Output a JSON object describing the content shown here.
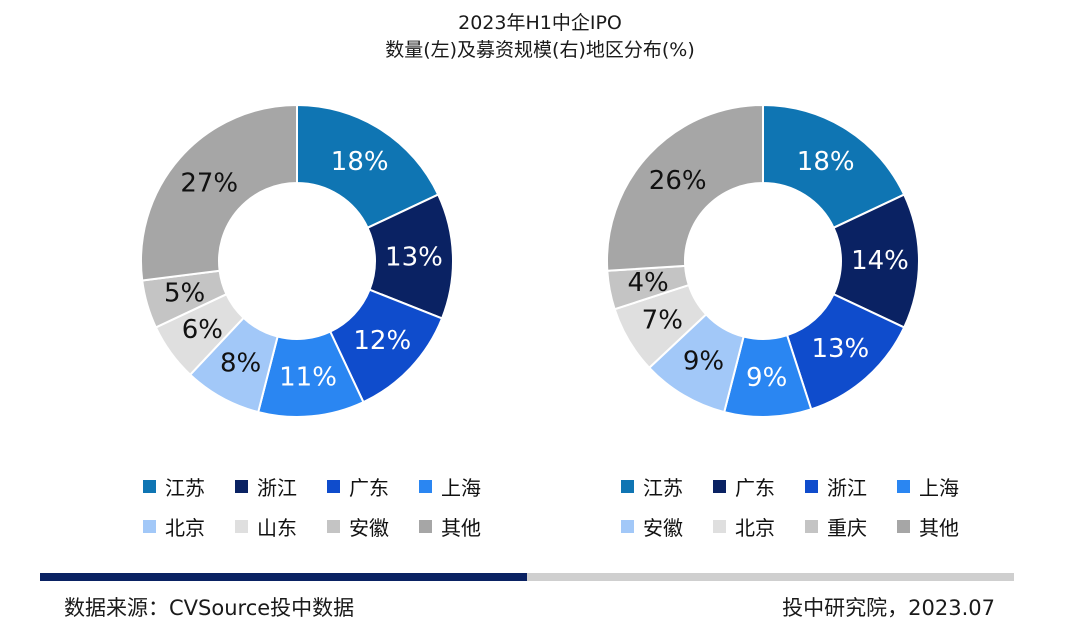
{
  "title": {
    "line1": "2023年H1中企IPO",
    "line2": "数量(左)及募资规模(右)地区分布(%)"
  },
  "chart_data": [
    {
      "type": "pie",
      "donut": true,
      "series_name": "数量",
      "categories": [
        "江苏",
        "浙江",
        "广东",
        "上海",
        "北京",
        "山东",
        "安徽",
        "其他"
      ],
      "values": [
        18,
        13,
        12,
        11,
        8,
        6,
        5,
        27
      ],
      "labels": [
        "18%",
        "13%",
        "12%",
        "11%",
        "8%",
        "6%",
        "5%",
        "27%"
      ],
      "colors": [
        "#0f75b3",
        "#0a2263",
        "#0f4ccc",
        "#2a86f2",
        "#a2c8f8",
        "#dfdfdf",
        "#c4c4c4",
        "#a6a6a6"
      ]
    },
    {
      "type": "pie",
      "donut": true,
      "series_name": "募资规模",
      "categories": [
        "江苏",
        "广东",
        "浙江",
        "上海",
        "安徽",
        "北京",
        "重庆",
        "其他"
      ],
      "values": [
        18,
        14,
        13,
        9,
        9,
        7,
        4,
        26
      ],
      "labels": [
        "18%",
        "14%",
        "13%",
        "9%",
        "9%",
        "7%",
        "4%",
        "26%"
      ],
      "colors": [
        "#0f75b3",
        "#0a2263",
        "#0f4ccc",
        "#2a86f2",
        "#a2c8f8",
        "#dfdfdf",
        "#c4c4c4",
        "#a6a6a6"
      ]
    }
  ],
  "footer": {
    "source": "数据来源：CVSource投中数据",
    "credit": "投中研究院，2023.07",
    "bar_colors": [
      "#0a2263",
      "#cfcfcf"
    ]
  }
}
